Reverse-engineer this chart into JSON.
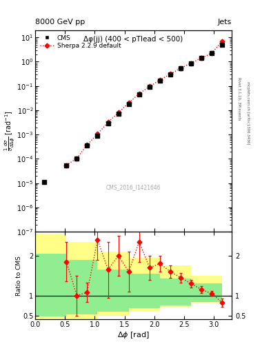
{
  "title_left": "8000 GeV pp",
  "title_right": "Jets",
  "annotation": "Δφ(jj) (400 < pTlead < 500)",
  "watermark": "CMS_2016_I1421646",
  "right_label_top": "Rivet 3.1.10, 3M events",
  "right_label_bot": "mcplots.cern.ch [arXiv:1306.3436]",
  "ylabel_main": "$\\frac{1}{\\sigma}\\frac{d\\sigma}{d\\Delta\\phi}$ [rad$^{-1}$]",
  "ylabel_ratio": "Ratio to CMS",
  "xlabel": "$\\Delta\\phi$ [rad]",
  "xlim": [
    0.0,
    3.3
  ],
  "ylim_main": [
    1e-07,
    20
  ],
  "ylim_ratio": [
    0.4,
    2.6
  ],
  "cms_x": [
    0.15,
    0.524,
    0.698,
    0.873,
    1.047,
    1.222,
    1.396,
    1.571,
    1.745,
    1.92,
    2.094,
    2.269,
    2.443,
    2.618,
    2.792,
    2.967,
    3.14
  ],
  "cms_y": [
    1.1e-05,
    5.5e-05,
    0.000105,
    0.00035,
    0.0009,
    0.0028,
    0.007,
    0.018,
    0.045,
    0.09,
    0.17,
    0.3,
    0.52,
    0.85,
    1.38,
    2.2,
    5.0
  ],
  "sherpa_x": [
    0.524,
    0.698,
    0.873,
    1.047,
    1.222,
    1.396,
    1.571,
    1.745,
    1.92,
    2.094,
    2.269,
    2.443,
    2.618,
    2.792,
    2.967,
    3.14
  ],
  "sherpa_y": [
    5.5e-05,
    0.000105,
    0.00038,
    0.00105,
    0.0032,
    0.008,
    0.02,
    0.048,
    0.095,
    0.175,
    0.31,
    0.535,
    0.87,
    1.4,
    2.25,
    7.0
  ],
  "sherpa_yerr_lo": [
    4e-06,
    5e-06,
    1.5e-05,
    3e-05,
    0.0001,
    0.0002,
    0.0005,
    0.001,
    0.002,
    0.004,
    0.007,
    0.012,
    0.02,
    0.035,
    0.06,
    0.2
  ],
  "sherpa_yerr_hi": [
    4e-06,
    5e-06,
    1.5e-05,
    3e-05,
    0.0001,
    0.0002,
    0.0005,
    0.001,
    0.002,
    0.004,
    0.007,
    0.012,
    0.02,
    0.035,
    0.06,
    0.2
  ],
  "ratio_x": [
    0.524,
    0.698,
    0.873,
    1.047,
    1.222,
    1.396,
    1.571,
    1.745,
    1.92,
    2.094,
    2.269,
    2.443,
    2.618,
    2.792,
    2.967,
    3.14
  ],
  "ratio_y": [
    1.85,
    1.0,
    1.08,
    2.4,
    1.65,
    2.0,
    1.6,
    2.35,
    1.7,
    1.8,
    1.6,
    1.45,
    1.3,
    1.15,
    1.05,
    0.82
  ],
  "ratio_yerr_lo": [
    0.5,
    0.5,
    0.25,
    0.5,
    0.7,
    0.5,
    0.5,
    0.5,
    0.3,
    0.2,
    0.15,
    0.12,
    0.1,
    0.08,
    0.06,
    0.1
  ],
  "ratio_yerr_hi": [
    0.5,
    0.5,
    0.25,
    0.5,
    0.7,
    0.5,
    0.5,
    0.5,
    0.3,
    0.2,
    0.15,
    0.12,
    0.1,
    0.08,
    0.06,
    0.1
  ],
  "yellow_band_edges": [
    0.0,
    0.524,
    1.047,
    1.571,
    2.094,
    2.618,
    3.14
  ],
  "yellow_top": [
    2.55,
    2.35,
    2.1,
    1.95,
    1.75,
    1.5,
    1.1
  ],
  "yellow_bot": [
    0.35,
    0.4,
    0.5,
    0.6,
    0.7,
    0.8,
    0.92
  ],
  "green_band_edges": [
    0.0,
    0.524,
    1.047,
    1.571,
    2.094,
    2.618,
    3.14
  ],
  "green_top": [
    2.05,
    1.9,
    1.65,
    1.55,
    1.42,
    1.3,
    1.04
  ],
  "green_bot": [
    0.48,
    0.52,
    0.6,
    0.68,
    0.76,
    0.84,
    0.96
  ],
  "color_cms": "#000000",
  "color_sherpa": "#ff0000",
  "color_yellow": "#ffff88",
  "color_green": "#90ee90"
}
